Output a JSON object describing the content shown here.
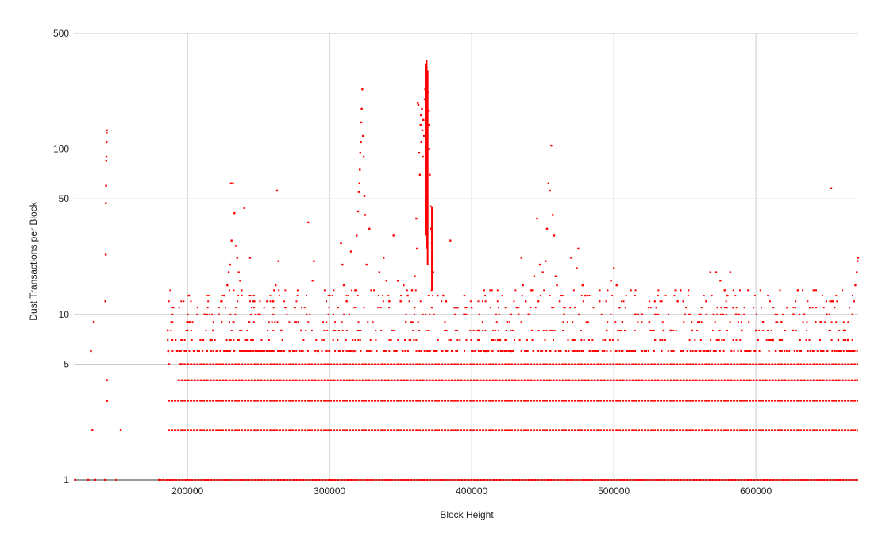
{
  "chart_data": {
    "type": "scatter",
    "title": "",
    "xlabel": "Block Height",
    "ylabel": "Dust Transactions per Block",
    "xlim": [
      120000,
      672000
    ],
    "ylim": [
      1,
      500
    ],
    "y_scale": "log",
    "grid": true,
    "legend": "none",
    "x_ticks": [
      {
        "value": 200000,
        "label": "200000"
      },
      {
        "value": 300000,
        "label": "300000"
      },
      {
        "value": 400000,
        "label": "400000"
      },
      {
        "value": 500000,
        "label": "500000"
      },
      {
        "value": 600000,
        "label": "600000"
      }
    ],
    "y_ticks": [
      {
        "value": 1,
        "label": "1"
      },
      {
        "value": 5,
        "label": "5"
      },
      {
        "value": 10,
        "label": "10"
      },
      {
        "value": 50,
        "label": "50"
      },
      {
        "value": 100,
        "label": "100"
      },
      {
        "value": 500,
        "label": "500"
      }
    ],
    "series": [
      {
        "color": "#ff0000",
        "points": [
          [
            121000,
            1
          ],
          [
            130000,
            1
          ],
          [
            132000,
            6
          ],
          [
            133000,
            2
          ],
          [
            134000,
            9
          ],
          [
            135000,
            1
          ],
          [
            142000,
            1
          ],
          [
            142200,
            12
          ],
          [
            142400,
            23
          ],
          [
            142500,
            47
          ],
          [
            142700,
            60
          ],
          [
            142800,
            85
          ],
          [
            142900,
            90
          ],
          [
            143000,
            110
          ],
          [
            143100,
            125
          ],
          [
            143200,
            130
          ],
          [
            143300,
            4
          ],
          [
            143400,
            3
          ],
          [
            150000,
            1
          ],
          [
            153000,
            2
          ],
          [
            180000,
            1
          ],
          [
            183000,
            1
          ],
          [
            186000,
            8
          ],
          [
            186500,
            6
          ],
          [
            187000,
            5
          ],
          [
            195000,
            5
          ],
          [
            200000,
            5
          ],
          [
            201000,
            13
          ],
          [
            201500,
            9
          ],
          [
            212000,
            10
          ],
          [
            216000,
            7
          ],
          [
            218000,
            8
          ],
          [
            222000,
            10
          ],
          [
            224000,
            12
          ],
          [
            226000,
            13
          ],
          [
            228000,
            15
          ],
          [
            229000,
            18
          ],
          [
            230000,
            20
          ],
          [
            230500,
            62
          ],
          [
            231000,
            28
          ],
          [
            232000,
            62
          ],
          [
            233000,
            41
          ],
          [
            234000,
            26
          ],
          [
            235000,
            22
          ],
          [
            236000,
            18
          ],
          [
            237000,
            16
          ],
          [
            238000,
            14
          ],
          [
            240000,
            44
          ],
          [
            244000,
            22
          ],
          [
            247000,
            12
          ],
          [
            256000,
            12
          ],
          [
            260000,
            12
          ],
          [
            261000,
            14
          ],
          [
            262000,
            15
          ],
          [
            263000,
            56
          ],
          [
            264000,
            21
          ],
          [
            266000,
            8
          ],
          [
            272000,
            6
          ],
          [
            276000,
            9
          ],
          [
            280000,
            8
          ],
          [
            285000,
            36
          ],
          [
            288000,
            16
          ],
          [
            289000,
            21
          ],
          [
            292000,
            6
          ],
          [
            300000,
            1
          ],
          [
            308000,
            27
          ],
          [
            309000,
            20
          ],
          [
            310000,
            15
          ],
          [
            312000,
            12
          ],
          [
            315000,
            24
          ],
          [
            317000,
            6
          ],
          [
            318000,
            14
          ],
          [
            319000,
            30
          ],
          [
            320000,
            42
          ],
          [
            320500,
            55
          ],
          [
            321000,
            62
          ],
          [
            321300,
            75
          ],
          [
            321600,
            95
          ],
          [
            322000,
            110
          ],
          [
            322300,
            145
          ],
          [
            322600,
            175
          ],
          [
            323000,
            230
          ],
          [
            323500,
            120
          ],
          [
            324000,
            90
          ],
          [
            324500,
            52
          ],
          [
            325000,
            40
          ],
          [
            326000,
            20
          ],
          [
            328000,
            33
          ],
          [
            335000,
            18
          ],
          [
            338000,
            22
          ],
          [
            340000,
            16
          ],
          [
            342000,
            12
          ],
          [
            345000,
            30
          ],
          [
            348000,
            16
          ],
          [
            350000,
            12
          ],
          [
            352000,
            15
          ],
          [
            355000,
            13
          ],
          [
            358000,
            14
          ],
          [
            360000,
            17
          ],
          [
            361000,
            38
          ],
          [
            361500,
            25
          ],
          [
            362000,
            190
          ],
          [
            362500,
            185
          ],
          [
            363000,
            95
          ],
          [
            363500,
            70
          ],
          [
            364000,
            140
          ],
          [
            364300,
            160
          ],
          [
            364600,
            110
          ],
          [
            365000,
            175
          ],
          [
            365300,
            130
          ],
          [
            365600,
            90
          ],
          [
            366000,
            150
          ],
          [
            366500,
            120
          ],
          [
            367000,
            200
          ],
          [
            367300,
            230
          ],
          [
            367600,
            260
          ],
          [
            367800,
            290
          ],
          [
            368000,
            320
          ],
          [
            368200,
            340
          ],
          [
            368400,
            310
          ],
          [
            368600,
            280
          ],
          [
            368800,
            250
          ],
          [
            369000,
            220
          ],
          [
            369300,
            170
          ],
          [
            369600,
            140
          ],
          [
            370000,
            100
          ],
          [
            370500,
            70
          ],
          [
            371000,
            45
          ],
          [
            371500,
            33
          ],
          [
            372000,
            27
          ],
          [
            372500,
            22
          ],
          [
            373000,
            18
          ],
          [
            376000,
            13
          ],
          [
            380000,
            13
          ],
          [
            382000,
            12
          ],
          [
            385000,
            28
          ],
          [
            388000,
            11
          ],
          [
            390000,
            11
          ],
          [
            395000,
            10
          ],
          [
            400000,
            11
          ],
          [
            405000,
            8
          ],
          [
            410000,
            6
          ],
          [
            420000,
            7
          ],
          [
            425000,
            9
          ],
          [
            428000,
            6
          ],
          [
            433000,
            10
          ],
          [
            435000,
            22
          ],
          [
            436000,
            15
          ],
          [
            438000,
            12
          ],
          [
            440000,
            10
          ],
          [
            442000,
            14
          ],
          [
            444000,
            17
          ],
          [
            446000,
            38
          ],
          [
            448000,
            20
          ],
          [
            450000,
            18
          ],
          [
            452000,
            21
          ],
          [
            453000,
            33
          ],
          [
            454000,
            62
          ],
          [
            455000,
            56
          ],
          [
            456000,
            105
          ],
          [
            457000,
            40
          ],
          [
            458000,
            30
          ],
          [
            459000,
            17
          ],
          [
            460000,
            15
          ],
          [
            462000,
            12
          ],
          [
            465000,
            10
          ],
          [
            470000,
            22
          ],
          [
            474000,
            19
          ],
          [
            475000,
            25
          ],
          [
            478000,
            15
          ],
          [
            480000,
            13
          ],
          [
            490000,
            12
          ],
          [
            495000,
            8
          ],
          [
            498000,
            16
          ],
          [
            500000,
            19
          ],
          [
            502000,
            15
          ],
          [
            504000,
            11
          ],
          [
            506000,
            9
          ],
          [
            515000,
            10
          ],
          [
            520000,
            10
          ],
          [
            525000,
            9
          ],
          [
            530000,
            11
          ],
          [
            535000,
            8
          ],
          [
            540000,
            8
          ],
          [
            545000,
            12
          ],
          [
            547000,
            14
          ],
          [
            550000,
            10
          ],
          [
            555000,
            8
          ],
          [
            560000,
            9
          ],
          [
            565000,
            12
          ],
          [
            568000,
            18
          ],
          [
            572000,
            18
          ],
          [
            575000,
            16
          ],
          [
            578000,
            14
          ],
          [
            580000,
            13
          ],
          [
            582000,
            18
          ],
          [
            584000,
            11
          ],
          [
            586000,
            10
          ],
          [
            590000,
            8
          ],
          [
            600000,
            8
          ],
          [
            605000,
            9
          ],
          [
            612000,
            7
          ],
          [
            618000,
            9
          ],
          [
            622000,
            11
          ],
          [
            626000,
            8
          ],
          [
            630000,
            14
          ],
          [
            634000,
            10
          ],
          [
            638000,
            11
          ],
          [
            642000,
            9
          ],
          [
            646000,
            9
          ],
          [
            650000,
            10
          ],
          [
            653000,
            58
          ],
          [
            654000,
            12
          ],
          [
            658000,
            7
          ],
          [
            662000,
            8
          ],
          [
            665000,
            7
          ],
          [
            668000,
            10
          ],
          [
            669000,
            12
          ],
          [
            670000,
            15
          ],
          [
            671000,
            18
          ],
          [
            671500,
            21
          ],
          [
            672000,
            22
          ]
        ]
      }
    ]
  }
}
